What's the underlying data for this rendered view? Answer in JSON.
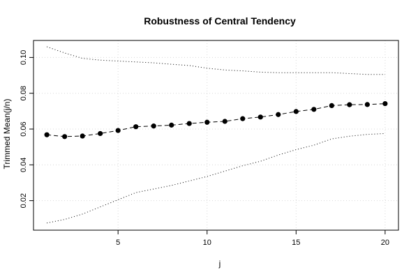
{
  "chart_data": {
    "type": "line",
    "title": "Robustness of Central Tendency",
    "xlabel": "j",
    "ylabel": "Trimmed Mean(j/n)",
    "xlim": [
      0.25,
      20.75
    ],
    "ylim": [
      0.0035,
      0.1095
    ],
    "x_ticks": [
      5,
      10,
      15,
      20
    ],
    "y_ticks": [
      0.02,
      0.04,
      0.06,
      0.08,
      0.1
    ],
    "x_tick_labels": [
      "5",
      "10",
      "15",
      "20"
    ],
    "y_tick_labels": [
      "0.02",
      "0.04",
      "0.06",
      "0.08",
      "0.10"
    ],
    "grid": true,
    "x": [
      1,
      2,
      3,
      4,
      5,
      6,
      7,
      8,
      9,
      10,
      11,
      12,
      13,
      14,
      15,
      16,
      17,
      18,
      19,
      20
    ],
    "series": [
      {
        "style": "dashed-with-points",
        "values": [
          0.0568,
          0.0558,
          0.0561,
          0.0575,
          0.0592,
          0.0613,
          0.0617,
          0.0622,
          0.0631,
          0.0638,
          0.0643,
          0.0658,
          0.0667,
          0.0681,
          0.0698,
          0.071,
          0.0731,
          0.0736,
          0.0737,
          0.0742
        ]
      },
      {
        "style": "dotted",
        "values": [
          0.106,
          0.1025,
          0.0995,
          0.0985,
          0.098,
          0.0975,
          0.097,
          0.0962,
          0.0955,
          0.094,
          0.093,
          0.0925,
          0.0918,
          0.0915,
          0.0915,
          0.0915,
          0.0915,
          0.091,
          0.0905,
          0.0905
        ]
      },
      {
        "style": "dotted",
        "values": [
          0.0075,
          0.0095,
          0.0125,
          0.0165,
          0.0205,
          0.0245,
          0.0265,
          0.0285,
          0.031,
          0.0335,
          0.0365,
          0.0395,
          0.042,
          0.0455,
          0.0485,
          0.051,
          0.0545,
          0.056,
          0.057,
          0.0575
        ]
      }
    ]
  }
}
